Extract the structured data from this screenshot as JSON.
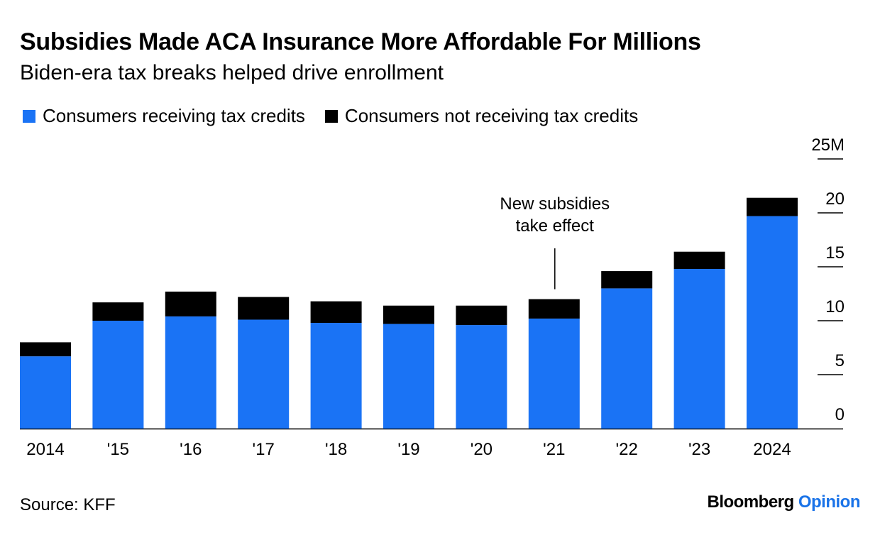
{
  "title": "Subsidies Made ACA Insurance More Affordable For Millions",
  "subtitle": "Biden-era tax breaks helped drive enrollment",
  "source": "Source: KFF",
  "brand": {
    "name": "Bloomberg",
    "section": "Opinion"
  },
  "colors": {
    "with_credits": "#1a73f5",
    "without_credits": "#000000",
    "opinion_accent": "#1a73e8"
  },
  "chart_data": {
    "type": "bar",
    "stacked": true,
    "categories": [
      "2014",
      "'15",
      "'16",
      "'17",
      "'18",
      "'19",
      "'20",
      "'21",
      "'22",
      "'23",
      "2024"
    ],
    "series": [
      {
        "name": "Consumers receiving tax credits",
        "color": "#1a73f5",
        "values": [
          6.7,
          10.0,
          10.4,
          10.1,
          9.8,
          9.7,
          9.6,
          10.2,
          13.0,
          14.8,
          19.7
        ]
      },
      {
        "name": "Consumers not receiving tax credits",
        "color": "#000000",
        "values": [
          1.3,
          1.7,
          2.3,
          2.1,
          2.0,
          1.7,
          1.8,
          1.8,
          1.6,
          1.6,
          1.7
        ]
      }
    ],
    "ylim": [
      0,
      25
    ],
    "y_ticks": [
      0,
      5,
      10,
      15,
      20,
      25
    ],
    "y_tick_labels": [
      "0",
      "5",
      "10",
      "15",
      "20",
      "25M"
    ],
    "y_axis_side": "right",
    "annotation": {
      "category": "'21",
      "lines": [
        "New subsidies",
        "take effect"
      ]
    }
  }
}
